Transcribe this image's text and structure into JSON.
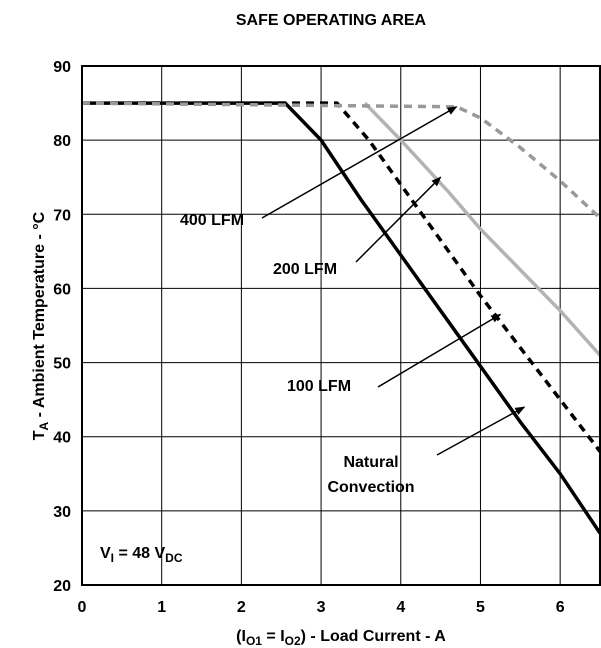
{
  "chart_data": {
    "type": "line",
    "title": "SAFE OPERATING AREA",
    "xlabel": {
      "prefix": "(I",
      "sub1": "O1",
      "mid": " = I",
      "sub2": "O2",
      "suffix": ") - Load Current - A"
    },
    "ylabel": {
      "main": "T",
      "sub": "A",
      "rest": " - Ambient Temperature - °C"
    },
    "xlim": [
      0,
      6.5
    ],
    "ylim": [
      20,
      90
    ],
    "xticks": [
      "0",
      "1",
      "2",
      "3",
      "4",
      "5",
      "6"
    ],
    "yticks": [
      "20",
      "30",
      "40",
      "50",
      "60",
      "70",
      "80",
      "90"
    ],
    "grid": true,
    "series": [
      {
        "name": "Natural Convection",
        "color": "#000000",
        "style": "solid",
        "points": [
          [
            0,
            85
          ],
          [
            2.55,
            85
          ],
          [
            3.0,
            80
          ],
          [
            3.5,
            72
          ],
          [
            4.0,
            64.5
          ],
          [
            4.5,
            57
          ],
          [
            5.0,
            49.5
          ],
          [
            5.5,
            42
          ],
          [
            6.0,
            35
          ],
          [
            6.5,
            27
          ]
        ]
      },
      {
        "name": "100 LFM",
        "color": "#000000",
        "style": "dashed",
        "points": [
          [
            0,
            85
          ],
          [
            3.2,
            85
          ],
          [
            3.6,
            80
          ],
          [
            4.0,
            74
          ],
          [
            4.5,
            66.5
          ],
          [
            5.0,
            59
          ],
          [
            5.5,
            52
          ],
          [
            6.0,
            45
          ],
          [
            6.5,
            38
          ]
        ]
      },
      {
        "name": "200 LFM",
        "color": "#b3b3b3",
        "style": "solid",
        "points": [
          [
            3.55,
            85
          ],
          [
            4.0,
            80
          ],
          [
            4.6,
            73
          ],
          [
            5.0,
            68
          ],
          [
            5.5,
            62.5
          ],
          [
            6.0,
            57
          ],
          [
            6.5,
            51
          ]
        ]
      },
      {
        "name": "400 LFM",
        "color": "#999999",
        "style": "dashed",
        "points": [
          [
            0,
            85
          ],
          [
            4.7,
            84.5
          ],
          [
            5.0,
            83
          ],
          [
            5.5,
            79
          ],
          [
            6.0,
            74.5
          ],
          [
            6.5,
            69.5
          ]
        ]
      }
    ],
    "annotations": [
      {
        "text": "400 LFM",
        "arrow_to": [
          4.7,
          84.5
        ]
      },
      {
        "text": "200 LFM",
        "arrow_to": [
          4.5,
          75
        ]
      },
      {
        "text": "100 LFM",
        "arrow_to": [
          5.25,
          56.5
        ]
      },
      {
        "text": "Natural",
        "arrow_to": [
          5.55,
          44
        ]
      },
      {
        "text": "Convection"
      }
    ],
    "condition": {
      "main": "V",
      "sub1": "I",
      "mid": " = 48 V",
      "sub2": "DC"
    }
  }
}
